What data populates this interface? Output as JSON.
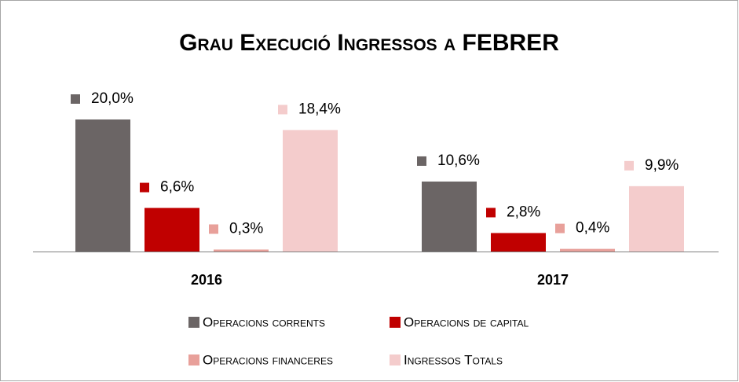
{
  "chart_data": {
    "type": "bar",
    "title": "Grau Execució Ingressos a FEBRER",
    "categories": [
      "2016",
      "2017"
    ],
    "series": [
      {
        "name": "Operacions corrents",
        "color": "#6b6565",
        "values": [
          20.0,
          10.6
        ],
        "value_labels": [
          "20,0%",
          "10,6%"
        ]
      },
      {
        "name": "Operacions de capital",
        "color": "#c00000",
        "values": [
          6.6,
          2.8
        ],
        "value_labels": [
          "6,6%",
          "2,8%"
        ]
      },
      {
        "name": "Operacions financeres",
        "color": "#e8a09a",
        "values": [
          0.3,
          0.4
        ],
        "value_labels": [
          "0,3%",
          "0,4%"
        ]
      },
      {
        "name": "Ingressos Totals",
        "color": "#f4cccc",
        "values": [
          18.4,
          9.9
        ],
        "value_labels": [
          "18,4%",
          "9,9%"
        ]
      }
    ]
  }
}
